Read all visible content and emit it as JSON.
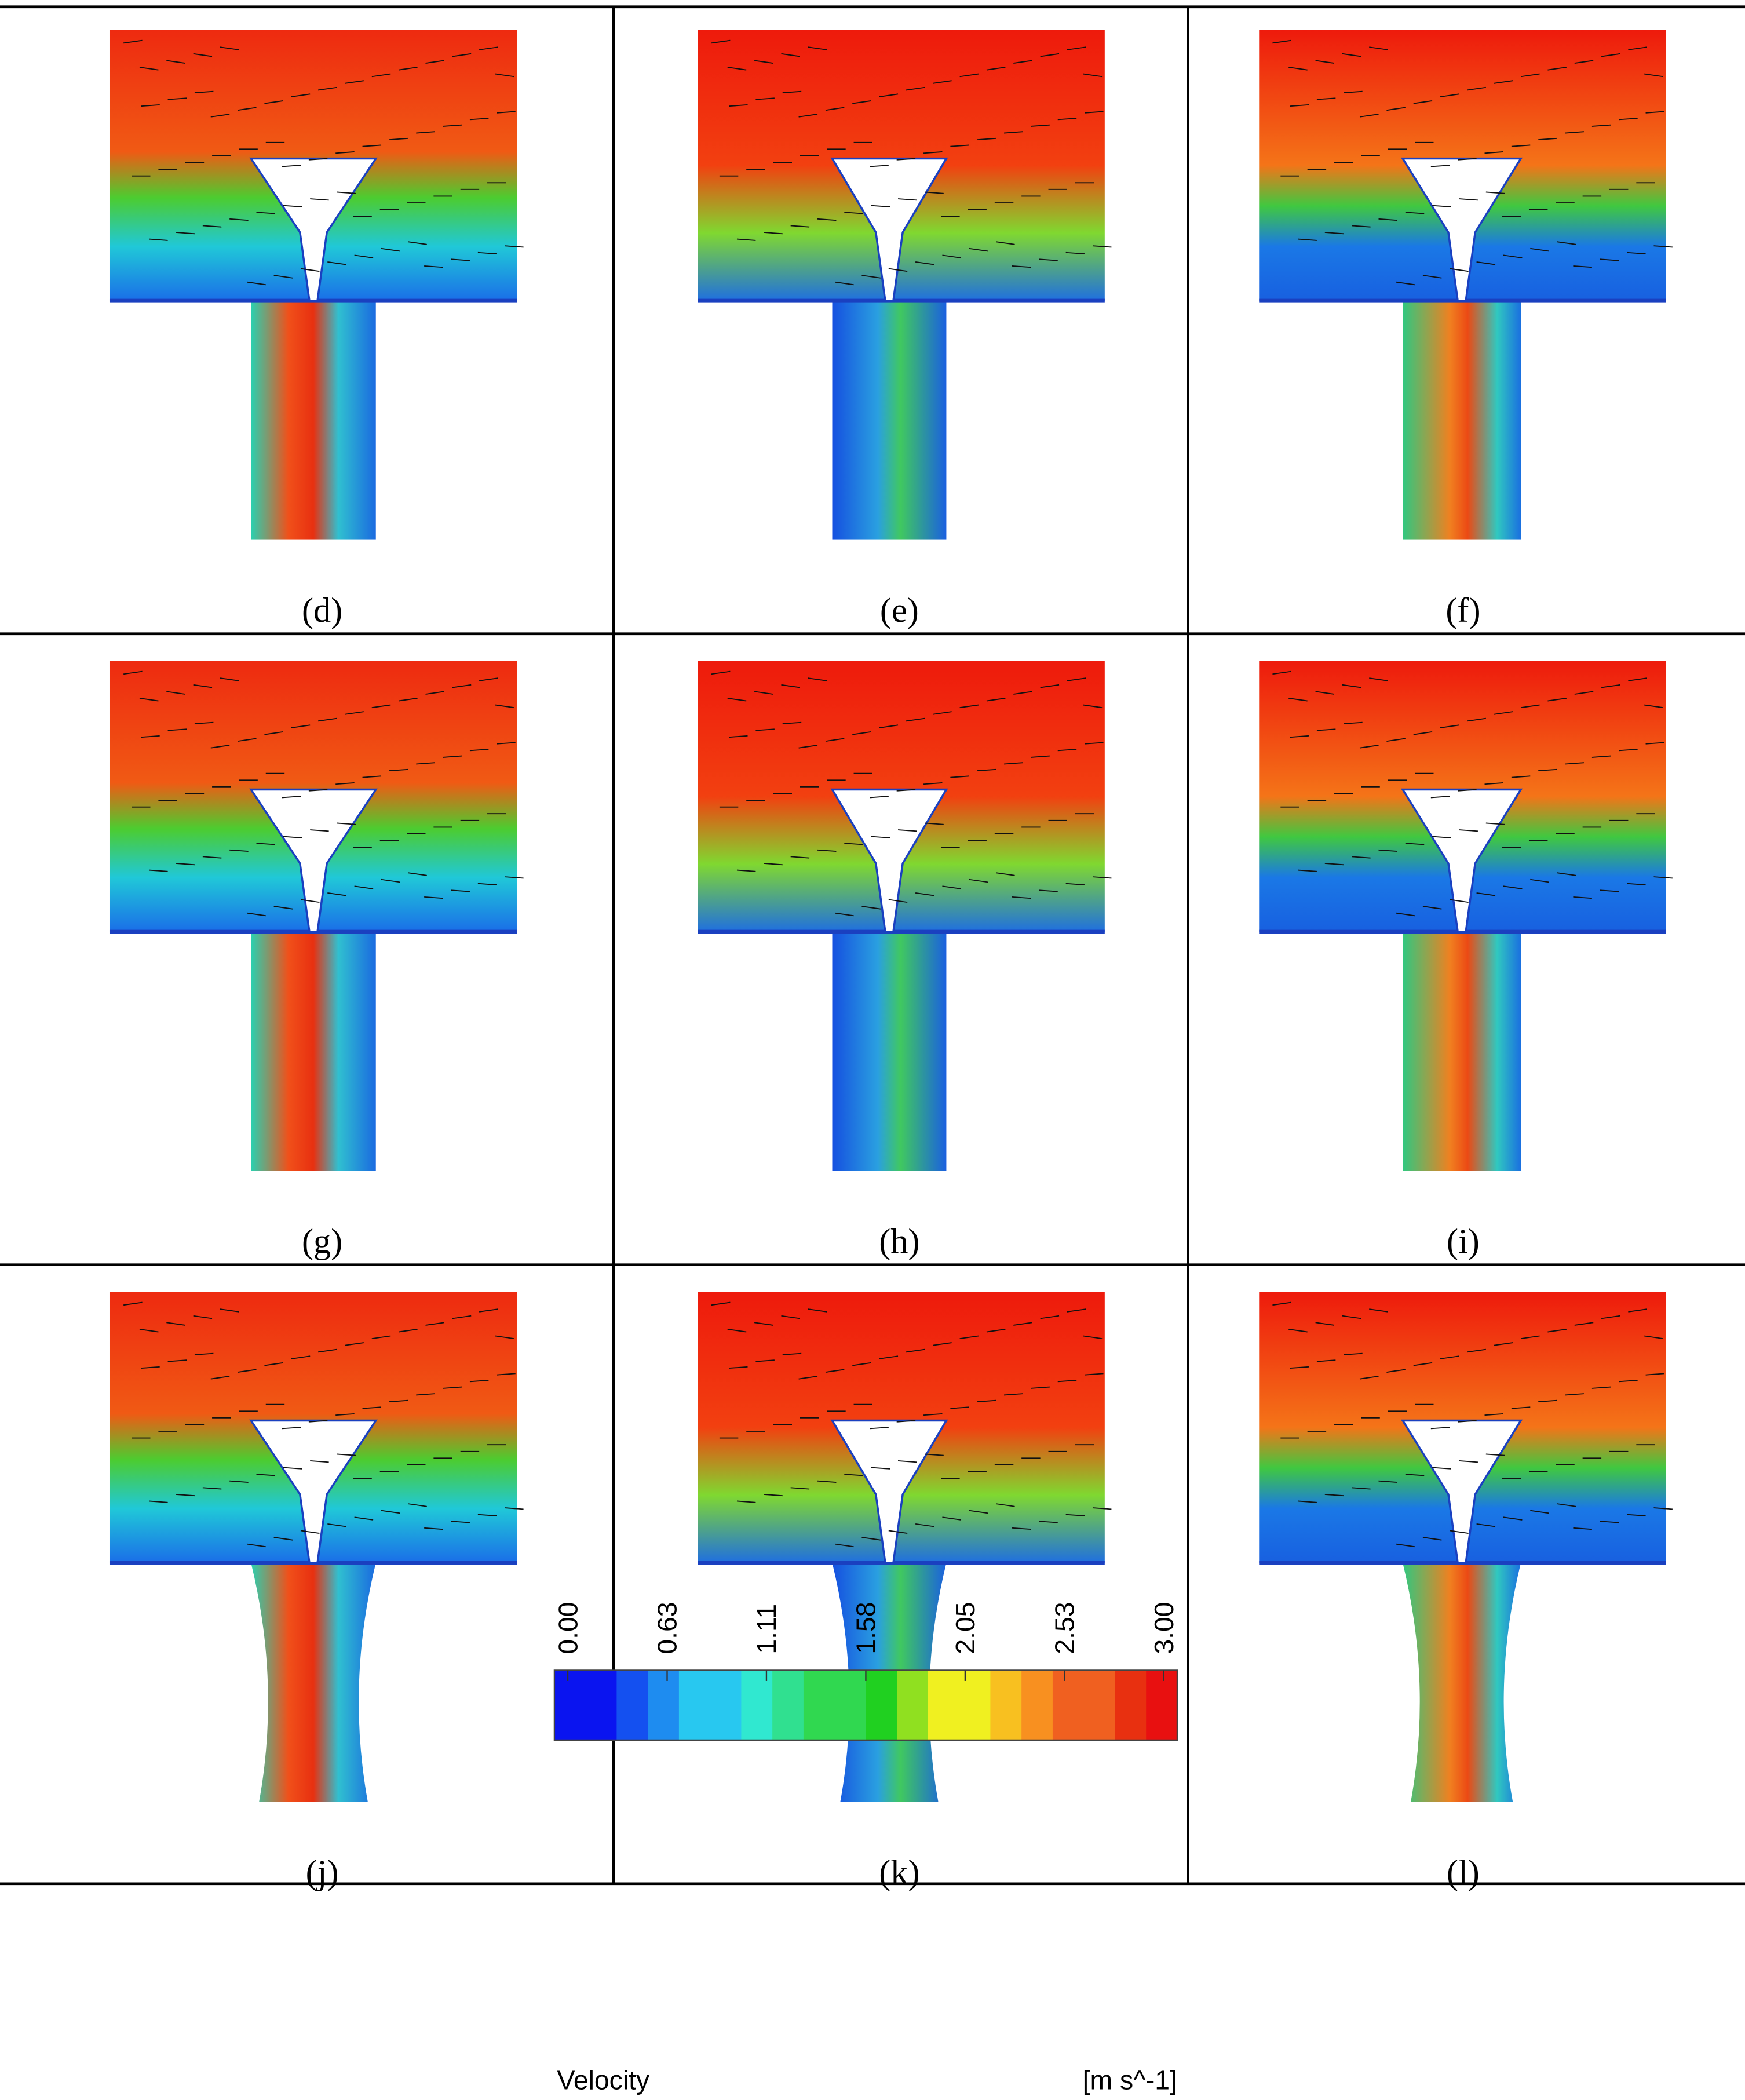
{
  "figure": {
    "panels": [
      {
        "label": "(d)"
      },
      {
        "label": "(e)"
      },
      {
        "label": "(f)"
      },
      {
        "label": "(g)"
      },
      {
        "label": "(h)"
      },
      {
        "label": "(i)"
      },
      {
        "label": "(j)"
      },
      {
        "label": "(k)"
      },
      {
        "label": "(l)"
      }
    ],
    "colorbar": {
      "title": "Velocity",
      "unit": "[m s^-1]",
      "ticks": [
        "0.00",
        "0.63",
        "1.11",
        "1.58",
        "2.05",
        "2.53",
        "3.00"
      ]
    }
  }
}
